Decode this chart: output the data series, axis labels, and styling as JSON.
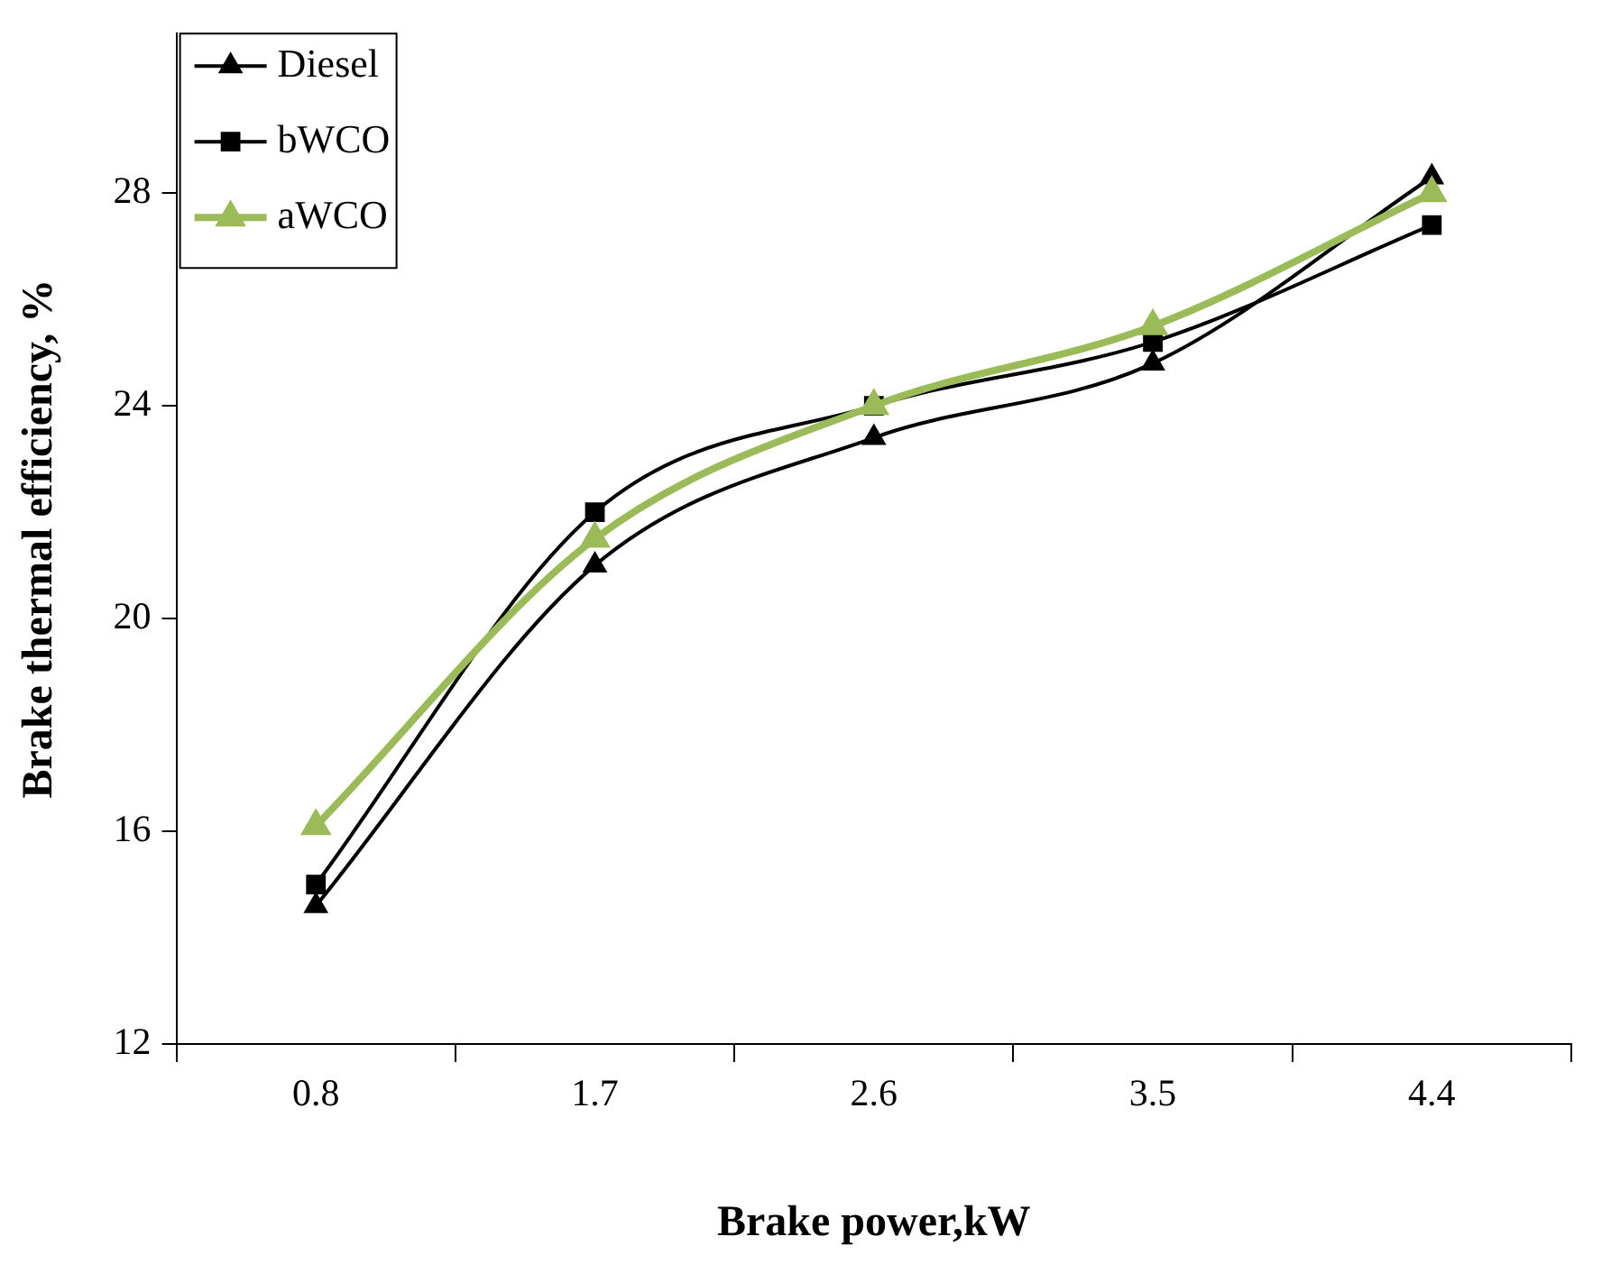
{
  "chart_data": {
    "type": "line",
    "xlabel": "Brake power,kW",
    "ylabel": "Brake thermal efficiency, %",
    "categories": [
      "0.8",
      "1.7",
      "2.6",
      "3.5",
      "4.4"
    ],
    "series": [
      {
        "name": "Diesel",
        "color": "#000000",
        "marker": "triangle",
        "values": [
          14.6,
          21.0,
          23.4,
          24.8,
          28.3
        ]
      },
      {
        "name": "bWCO",
        "color": "#000000",
        "marker": "square",
        "values": [
          15.0,
          22.0,
          24.0,
          25.2,
          27.4
        ]
      },
      {
        "name": "aWCO",
        "color": "#9bbb59",
        "marker": "triangle",
        "values": [
          16.1,
          21.5,
          24.0,
          25.5,
          28.0
        ]
      }
    ],
    "ylim": [
      12,
      31
    ],
    "yticks": [
      12,
      16,
      20,
      24,
      28
    ],
    "grid": false,
    "legend": "top left"
  }
}
